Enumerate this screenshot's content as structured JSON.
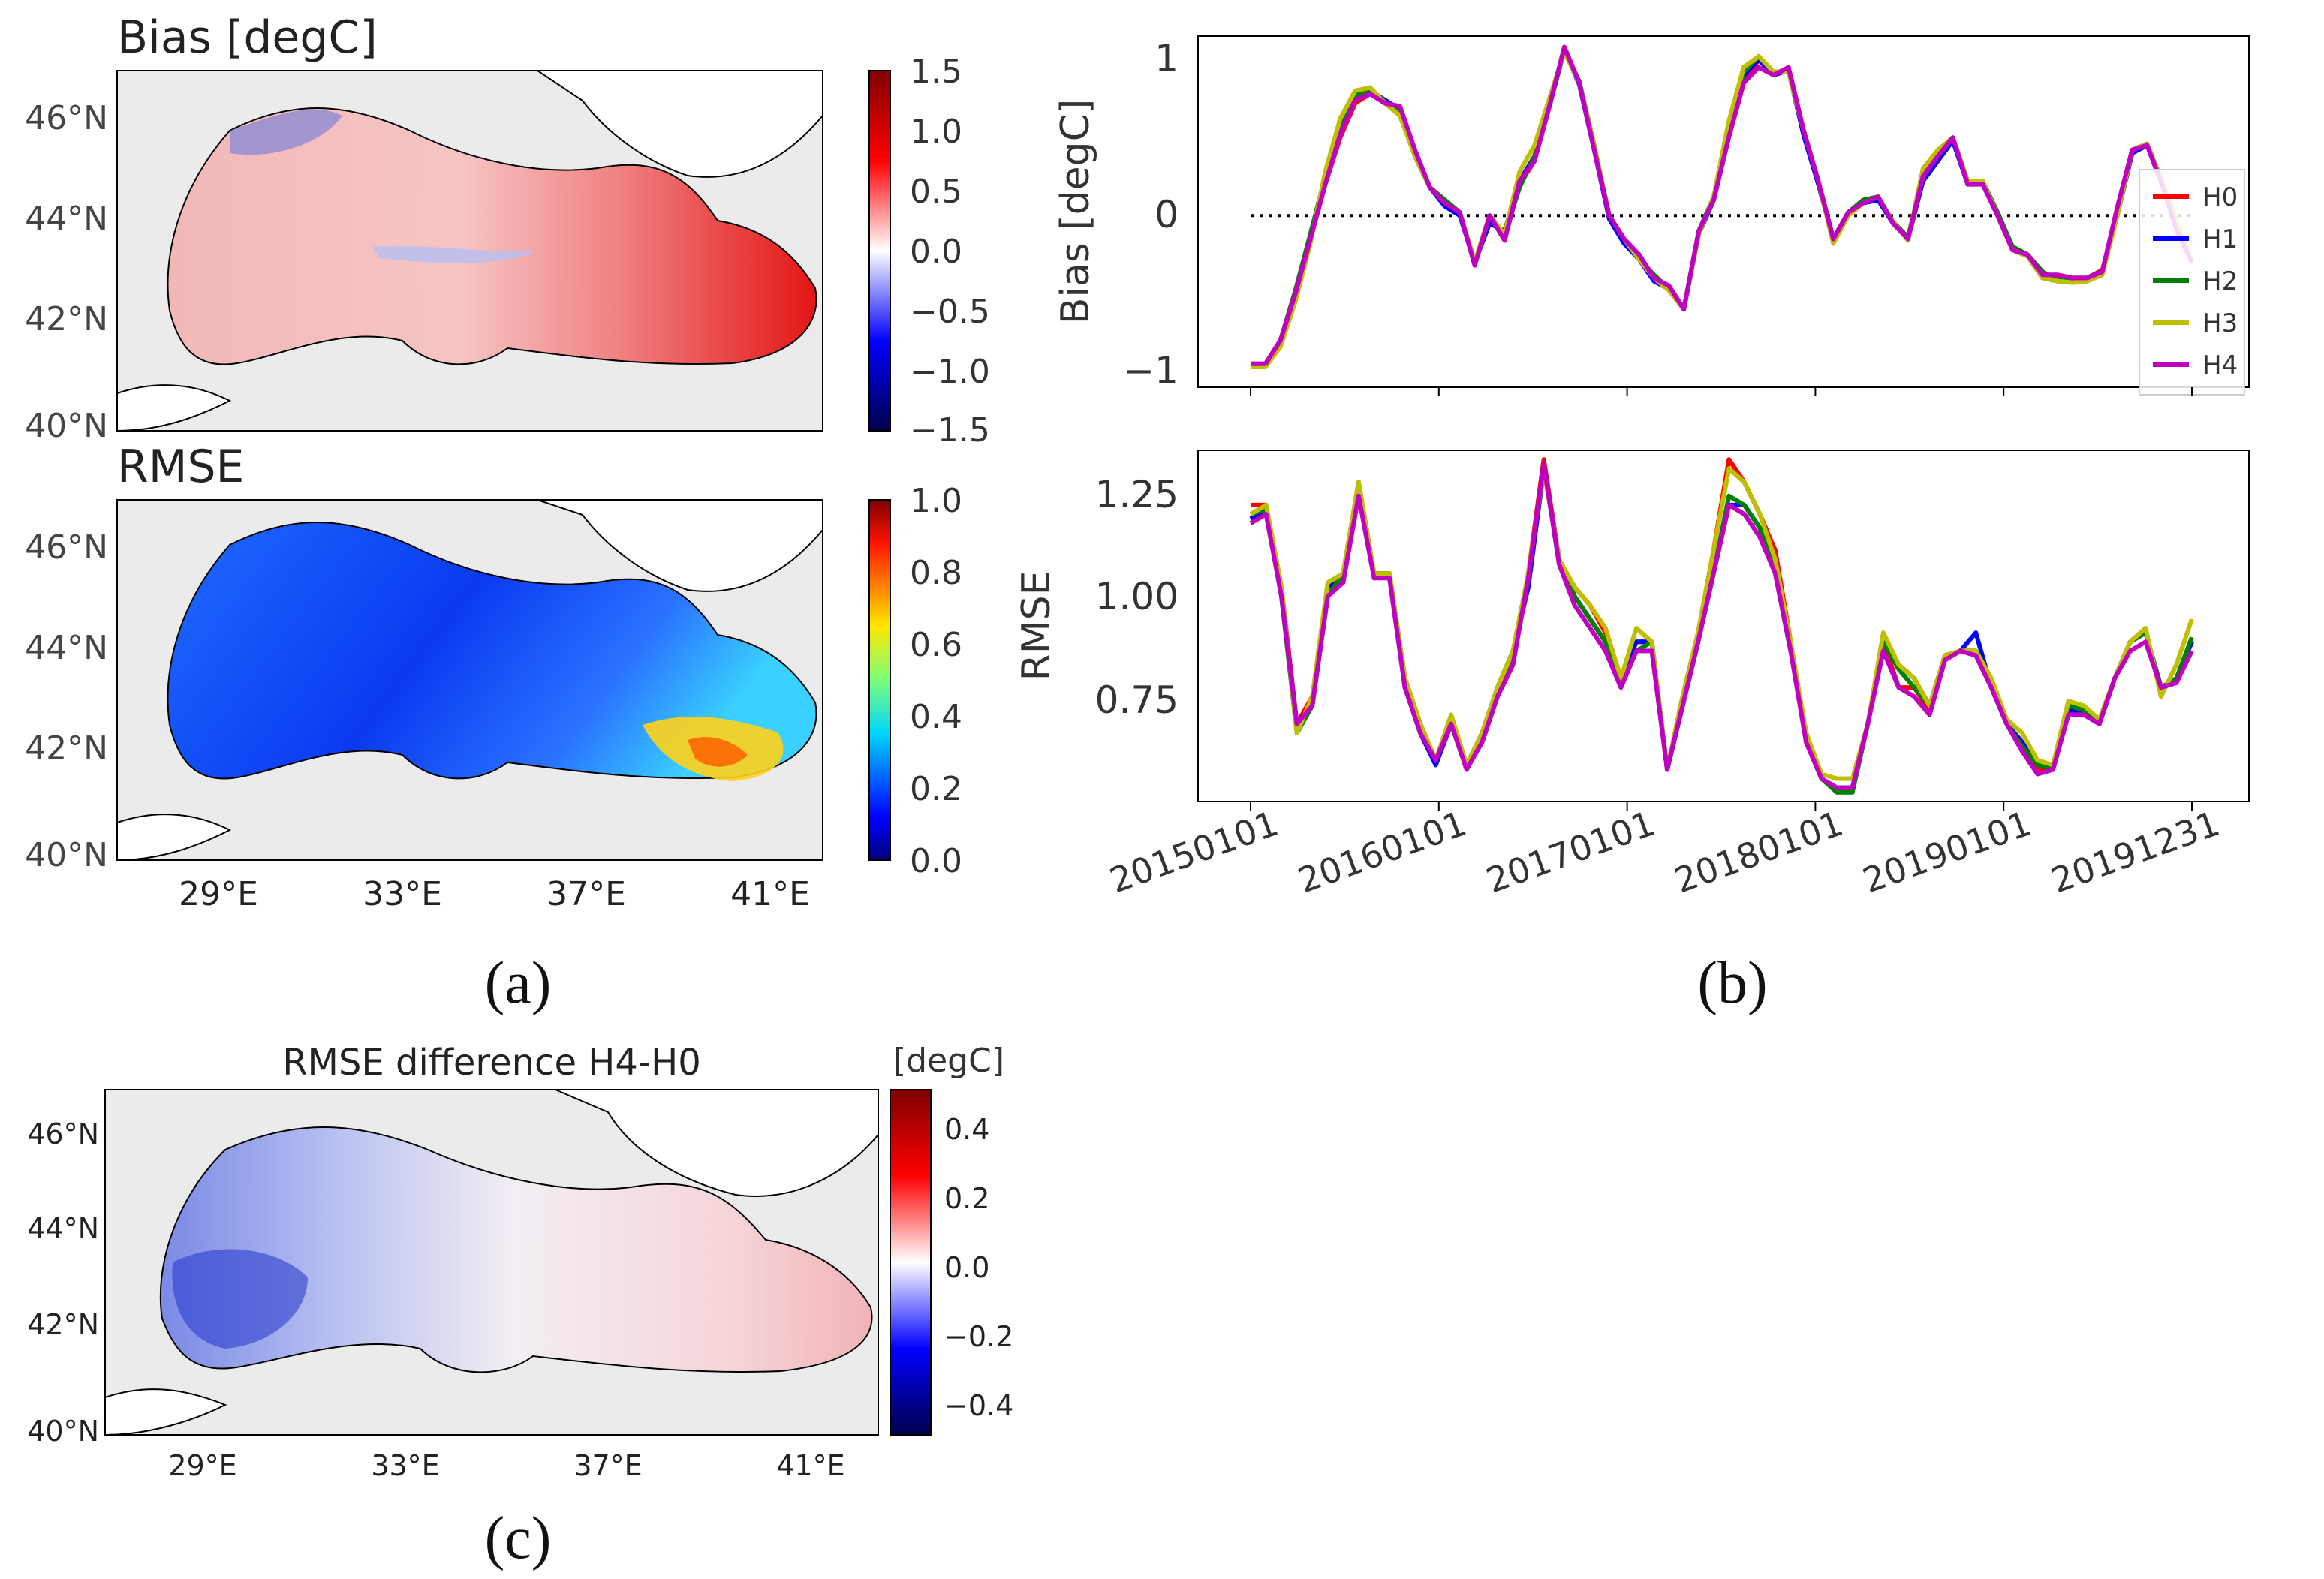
{
  "panel_labels": {
    "a": "(a)",
    "b": "(b)",
    "c": "(c)"
  },
  "colors": {
    "H0": "#ff0000",
    "H1": "#0000ff",
    "H2": "#008000",
    "H3": "#bfbf00",
    "H4": "#c000c0",
    "land": "#ffffff",
    "map_bg": "#ebebeb",
    "coast": "#000000"
  },
  "chart_data": [
    {
      "id": "bias_map",
      "type": "heatmap",
      "title": "Bias [degC]",
      "lat_ticks": [
        "46°N",
        "44°N",
        "42°N",
        "40°N"
      ],
      "lon_ticks": [],
      "colorbar": {
        "cmap": "seismic",
        "ticks": [
          "1.5",
          "1.0",
          "0.5",
          "0.0",
          "−0.5",
          "−1.0",
          "−1.5"
        ],
        "range": [
          -1.5,
          1.5
        ]
      }
    },
    {
      "id": "rmse_map",
      "type": "heatmap",
      "title": "RMSE",
      "lat_ticks": [
        "46°N",
        "44°N",
        "42°N",
        "40°N"
      ],
      "lon_ticks": [
        "29°E",
        "33°E",
        "37°E",
        "41°E"
      ],
      "colorbar": {
        "cmap": "jet",
        "ticks": [
          "1.0",
          "0.8",
          "0.6",
          "0.4",
          "0.2",
          "0.0"
        ],
        "range": [
          0,
          1
        ]
      }
    },
    {
      "id": "diff_map",
      "type": "heatmap",
      "title": "RMSE difference H4-H0",
      "lat_ticks": [
        "46°N",
        "44°N",
        "42°N",
        "40°N"
      ],
      "lon_ticks": [
        "29°E",
        "33°E",
        "37°E",
        "41°E"
      ],
      "colorbar": {
        "cmap": "seismic",
        "label": "[degC]",
        "ticks": [
          "0.4",
          "0.2",
          "0.0",
          "−0.2",
          "−0.4"
        ],
        "range": [
          -0.5,
          0.5
        ]
      }
    },
    {
      "id": "bias_ts",
      "type": "line",
      "ylabel": "Bias [degC]",
      "yticks": [
        "1",
        "0",
        "−1"
      ],
      "ylim": [
        -1.1,
        1.15
      ],
      "zero_line": 0,
      "legend": [
        "H0",
        "H1",
        "H2",
        "H3",
        "H4"
      ],
      "series": [
        {
          "name": "H0",
          "values": [
            -0.95,
            -0.95,
            -0.8,
            -0.5,
            -0.15,
            0.2,
            0.5,
            0.72,
            0.78,
            0.72,
            0.68,
            0.4,
            0.18,
            0.1,
            0.02,
            -0.3,
            0.0,
            -0.15,
            0.2,
            0.35,
            0.7,
            1.08,
            0.85,
            0.45,
            0.0,
            -0.15,
            -0.25,
            -0.4,
            -0.45,
            -0.6,
            -0.1,
            0.1,
            0.5,
            0.85,
            1.0,
            0.9,
            0.95,
            0.55,
            0.22,
            -0.15,
            0.0,
            0.08,
            0.12,
            -0.05,
            -0.15,
            0.25,
            0.38,
            0.5,
            0.2,
            0.22,
            0.0,
            -0.22,
            -0.25,
            -0.38,
            -0.4,
            -0.42,
            -0.4,
            -0.35,
            0.0,
            0.42,
            0.45,
            0.2,
            -0.05,
            -0.3
          ]
        },
        {
          "name": "H1",
          "values": [
            -0.96,
            -0.96,
            -0.82,
            -0.52,
            -0.16,
            0.22,
            0.55,
            0.75,
            0.8,
            0.74,
            0.68,
            0.38,
            0.18,
            0.06,
            0.0,
            -0.3,
            -0.05,
            -0.1,
            0.22,
            0.38,
            0.72,
            1.06,
            0.84,
            0.42,
            -0.02,
            -0.18,
            -0.28,
            -0.42,
            -0.47,
            -0.6,
            -0.12,
            0.1,
            0.55,
            0.9,
            1.0,
            0.9,
            0.93,
            0.52,
            0.2,
            -0.15,
            0.02,
            0.08,
            0.1,
            -0.05,
            -0.15,
            0.22,
            0.35,
            0.48,
            0.2,
            0.22,
            0.0,
            -0.22,
            -0.26,
            -0.4,
            -0.42,
            -0.42,
            -0.4,
            -0.36,
            0.0,
            0.4,
            0.45,
            0.2,
            -0.05,
            -0.3
          ]
        },
        {
          "name": "H2",
          "values": [
            -0.95,
            -0.96,
            -0.8,
            -0.48,
            -0.12,
            0.25,
            0.58,
            0.77,
            0.8,
            0.73,
            0.66,
            0.4,
            0.18,
            0.1,
            0.02,
            -0.3,
            0.0,
            -0.12,
            0.18,
            0.38,
            0.7,
            1.06,
            0.86,
            0.45,
            0.0,
            -0.15,
            -0.28,
            -0.38,
            -0.47,
            -0.6,
            -0.1,
            0.12,
            0.55,
            0.92,
            1.02,
            0.92,
            0.92,
            0.55,
            0.22,
            -0.15,
            0.02,
            0.1,
            0.12,
            -0.04,
            -0.14,
            0.26,
            0.4,
            0.5,
            0.22,
            0.22,
            0.02,
            -0.2,
            -0.25,
            -0.36,
            -0.42,
            -0.4,
            -0.4,
            -0.36,
            0.02,
            0.42,
            0.46,
            0.22,
            -0.04,
            -0.3
          ]
        },
        {
          "name": "H3",
          "values": [
            -0.97,
            -0.97,
            -0.84,
            -0.55,
            -0.18,
            0.28,
            0.62,
            0.8,
            0.82,
            0.72,
            0.64,
            0.38,
            0.18,
            0.08,
            0.02,
            -0.3,
            0.0,
            -0.12,
            0.28,
            0.45,
            0.75,
            1.05,
            0.85,
            0.45,
            0.0,
            -0.15,
            -0.28,
            -0.4,
            -0.48,
            -0.6,
            -0.12,
            0.12,
            0.6,
            0.95,
            1.02,
            0.92,
            0.92,
            0.55,
            0.22,
            -0.18,
            0.0,
            0.08,
            0.12,
            -0.04,
            -0.16,
            0.3,
            0.42,
            0.5,
            0.22,
            0.22,
            0.0,
            -0.22,
            -0.26,
            -0.4,
            -0.42,
            -0.43,
            -0.42,
            -0.38,
            0.0,
            0.42,
            0.46,
            0.22,
            -0.04,
            -0.3
          ]
        },
        {
          "name": "H4",
          "values": [
            -0.95,
            -0.95,
            -0.8,
            -0.5,
            -0.15,
            0.2,
            0.52,
            0.74,
            0.78,
            0.72,
            0.7,
            0.42,
            0.18,
            0.08,
            0.02,
            -0.32,
            0.0,
            -0.16,
            0.22,
            0.35,
            0.7,
            1.08,
            0.85,
            0.42,
            0.0,
            -0.15,
            -0.25,
            -0.4,
            -0.45,
            -0.6,
            -0.1,
            0.1,
            0.5,
            0.85,
            0.95,
            0.9,
            0.95,
            0.55,
            0.22,
            -0.15,
            0.02,
            0.08,
            0.12,
            -0.05,
            -0.15,
            0.25,
            0.38,
            0.5,
            0.2,
            0.2,
            0.0,
            -0.22,
            -0.25,
            -0.38,
            -0.38,
            -0.4,
            -0.4,
            -0.36,
            0.05,
            0.42,
            0.45,
            0.2,
            -0.1,
            -0.3
          ]
        }
      ]
    },
    {
      "id": "rmse_ts",
      "type": "line",
      "ylabel": "RMSE",
      "yticks": [
        "1.25",
        "1.00",
        "0.75"
      ],
      "ylim": [
        0.55,
        1.32
      ],
      "xtick_labels": [
        "20150101",
        "20160101",
        "20170101",
        "20180101",
        "20190101",
        "20191231"
      ],
      "series": [
        {
          "name": "H0",
          "values": [
            1.2,
            1.2,
            1.02,
            0.72,
            0.78,
            1.0,
            1.05,
            1.25,
            1.05,
            1.05,
            0.82,
            0.72,
            0.64,
            0.72,
            0.63,
            0.68,
            0.78,
            0.85,
            1.05,
            1.3,
            1.08,
            1.02,
            0.98,
            0.92,
            0.82,
            0.9,
            0.9,
            0.62,
            0.78,
            0.92,
            1.1,
            1.3,
            1.25,
            1.18,
            1.1,
            0.9,
            0.68,
            0.6,
            0.58,
            0.58,
            0.72,
            0.9,
            0.8,
            0.8,
            0.75,
            0.87,
            0.88,
            0.88,
            0.8,
            0.72,
            0.68,
            0.62,
            0.62,
            0.75,
            0.75,
            0.72,
            0.82,
            0.9,
            0.92,
            0.8,
            0.82,
            0.9
          ]
        },
        {
          "name": "H1",
          "values": [
            1.17,
            1.19,
            1.0,
            0.72,
            0.76,
            1.02,
            1.05,
            1.22,
            1.05,
            1.05,
            0.8,
            0.7,
            0.63,
            0.72,
            0.63,
            0.7,
            0.8,
            0.88,
            1.02,
            1.28,
            1.08,
            1.0,
            0.95,
            0.9,
            0.82,
            0.9,
            0.9,
            0.62,
            0.76,
            0.9,
            1.05,
            1.2,
            1.2,
            1.15,
            1.05,
            0.88,
            0.7,
            0.6,
            0.58,
            0.58,
            0.72,
            0.9,
            0.85,
            0.82,
            0.76,
            0.87,
            0.88,
            0.92,
            0.8,
            0.72,
            0.68,
            0.63,
            0.62,
            0.75,
            0.75,
            0.72,
            0.82,
            0.9,
            0.92,
            0.8,
            0.82,
            0.9
          ]
        },
        {
          "name": "H2",
          "values": [
            1.18,
            1.19,
            1.0,
            0.7,
            0.76,
            1.0,
            1.05,
            1.23,
            1.05,
            1.05,
            0.82,
            0.72,
            0.64,
            0.73,
            0.63,
            0.68,
            0.78,
            0.86,
            1.04,
            1.29,
            1.07,
            1.0,
            0.95,
            0.9,
            0.8,
            0.88,
            0.9,
            0.62,
            0.76,
            0.9,
            1.05,
            1.22,
            1.2,
            1.15,
            1.05,
            0.88,
            0.7,
            0.6,
            0.57,
            0.57,
            0.72,
            0.9,
            0.84,
            0.8,
            0.76,
            0.87,
            0.88,
            0.88,
            0.8,
            0.72,
            0.67,
            0.63,
            0.62,
            0.76,
            0.75,
            0.72,
            0.82,
            0.9,
            0.92,
            0.8,
            0.82,
            0.91
          ]
        },
        {
          "name": "H3",
          "values": [
            1.18,
            1.2,
            1.02,
            0.7,
            0.78,
            1.03,
            1.05,
            1.25,
            1.05,
            1.05,
            0.82,
            0.72,
            0.64,
            0.74,
            0.63,
            0.7,
            0.8,
            0.88,
            1.05,
            1.28,
            1.08,
            1.02,
            0.98,
            0.93,
            0.82,
            0.93,
            0.9,
            0.62,
            0.78,
            0.92,
            1.1,
            1.28,
            1.25,
            1.18,
            1.08,
            0.9,
            0.7,
            0.61,
            0.6,
            0.6,
            0.72,
            0.92,
            0.85,
            0.82,
            0.76,
            0.87,
            0.88,
            0.88,
            0.82,
            0.73,
            0.7,
            0.64,
            0.63,
            0.77,
            0.76,
            0.73,
            0.82,
            0.9,
            0.93,
            0.78,
            0.85,
            0.95
          ]
        },
        {
          "name": "H4",
          "values": [
            1.16,
            1.18,
            1.0,
            0.72,
            0.76,
            1.0,
            1.03,
            1.22,
            1.04,
            1.04,
            0.8,
            0.7,
            0.64,
            0.72,
            0.62,
            0.68,
            0.78,
            0.85,
            1.04,
            1.29,
            1.07,
            0.98,
            0.93,
            0.88,
            0.8,
            0.88,
            0.88,
            0.62,
            0.76,
            0.9,
            1.05,
            1.2,
            1.18,
            1.13,
            1.05,
            0.88,
            0.68,
            0.6,
            0.58,
            0.58,
            0.72,
            0.88,
            0.8,
            0.78,
            0.74,
            0.86,
            0.88,
            0.87,
            0.8,
            0.72,
            0.66,
            0.61,
            0.62,
            0.74,
            0.74,
            0.72,
            0.82,
            0.88,
            0.9,
            0.8,
            0.81,
            0.88
          ]
        }
      ]
    }
  ]
}
